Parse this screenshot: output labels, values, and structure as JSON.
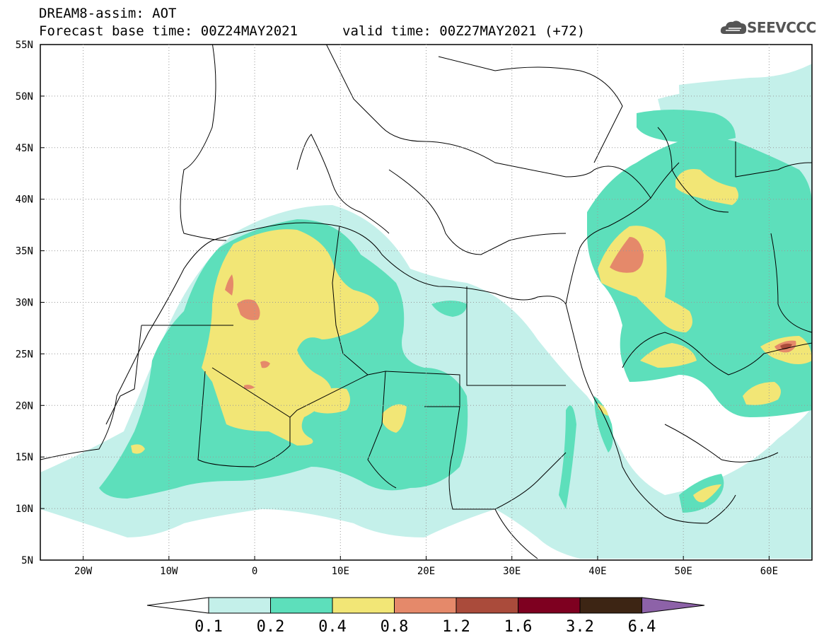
{
  "header": {
    "title": "DREAM8-assim: AOT",
    "base_time": "Forecast base time: 00Z24MAY2021",
    "valid_time": "valid time: 00Z27MAY2021 (+72)",
    "logo_text": "SEEVCCC"
  },
  "map": {
    "lon_range": [
      -25,
      65
    ],
    "lat_range": [
      5,
      55
    ],
    "x_ticks": [
      {
        "lon": -20,
        "label": "20W"
      },
      {
        "lon": -10,
        "label": "10W"
      },
      {
        "lon": 0,
        "label": "0"
      },
      {
        "lon": 10,
        "label": "10E"
      },
      {
        "lon": 20,
        "label": "20E"
      },
      {
        "lon": 30,
        "label": "30E"
      },
      {
        "lon": 40,
        "label": "40E"
      },
      {
        "lon": 50,
        "label": "50E"
      },
      {
        "lon": 60,
        "label": "60E"
      }
    ],
    "y_ticks": [
      {
        "lat": 55,
        "label": "55N"
      },
      {
        "lat": 50,
        "label": "50N"
      },
      {
        "lat": 45,
        "label": "45N"
      },
      {
        "lat": 40,
        "label": "40N"
      },
      {
        "lat": 35,
        "label": "35N"
      },
      {
        "lat": 30,
        "label": "30N"
      },
      {
        "lat": 25,
        "label": "25N"
      },
      {
        "lat": 20,
        "label": "20N"
      },
      {
        "lat": 15,
        "label": "15N"
      },
      {
        "lat": 10,
        "label": "10N"
      },
      {
        "lat": 5,
        "label": "5N"
      }
    ]
  },
  "colorbar": {
    "levels": [
      "0.1",
      "0.2",
      "0.4",
      "0.8",
      "1.2",
      "1.6",
      "3.2",
      "6.4"
    ],
    "colors": [
      "#ffffff",
      "#c4f0ea",
      "#5ddfbb",
      "#f2e676",
      "#e5896a",
      "#aa4b3b",
      "#7e0020",
      "#3d2514",
      "#8d62a8"
    ]
  }
}
